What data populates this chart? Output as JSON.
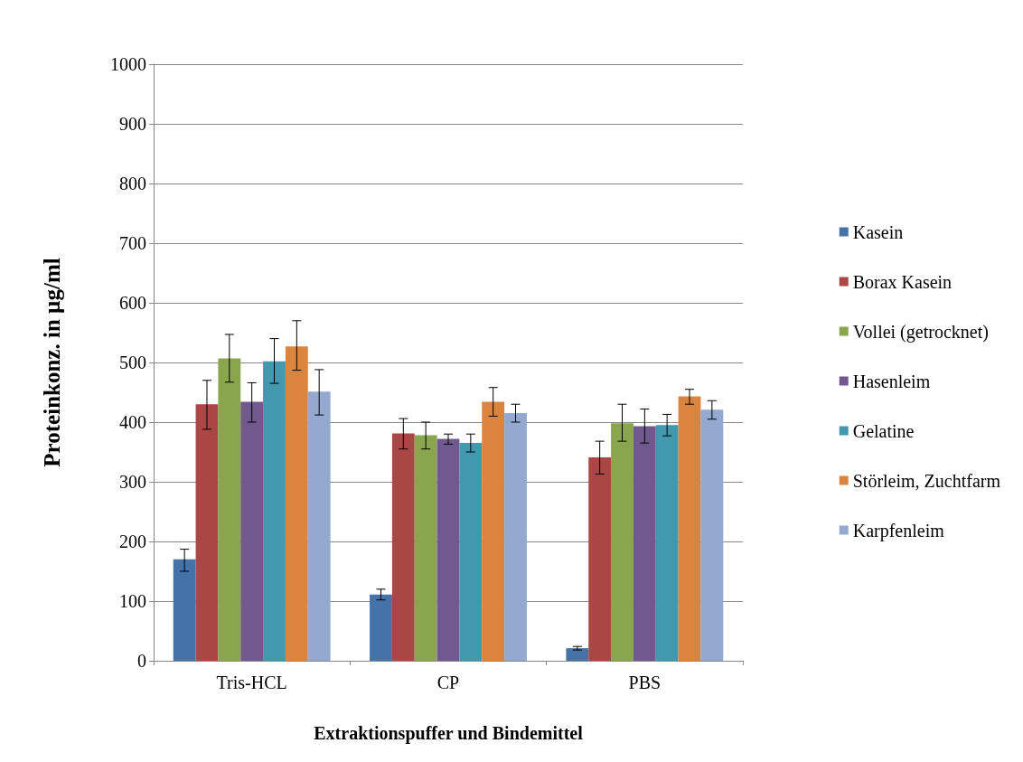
{
  "chart_data": {
    "type": "bar",
    "categories": [
      "Tris-HCL",
      "CP",
      "PBS"
    ],
    "xlabel": "Extraktionspuffer und Bindemittel",
    "ylabel": "Proteinkonz. in µg/ml",
    "ylim": [
      0,
      1000
    ],
    "yticks": [
      0,
      100,
      200,
      300,
      400,
      500,
      600,
      700,
      800,
      900,
      1000
    ],
    "grid": "y",
    "legend": "right",
    "series": [
      {
        "name": "Kasein",
        "color": "#4572a7",
        "values": [
          170,
          111,
          21
        ],
        "errors": [
          [
            150,
            187
          ],
          [
            102,
            120
          ],
          [
            18,
            24
          ]
        ]
      },
      {
        "name": "Borax Kasein",
        "color": "#aa4643",
        "values": [
          430,
          381,
          341
        ],
        "errors": [
          [
            388,
            470
          ],
          [
            355,
            406
          ],
          [
            313,
            368
          ]
        ]
      },
      {
        "name": "Vollei (getrocknet)",
        "color": "#89a54e",
        "values": [
          507,
          378,
          398
        ],
        "errors": [
          [
            467,
            547
          ],
          [
            355,
            400
          ],
          [
            368,
            430
          ]
        ]
      },
      {
        "name": "Hasenleim",
        "color": "#71588f",
        "values": [
          434,
          372,
          393
        ],
        "errors": [
          [
            400,
            466
          ],
          [
            363,
            380
          ],
          [
            365,
            422
          ]
        ]
      },
      {
        "name": "Gelatine",
        "color": "#4198af",
        "values": [
          502,
          365,
          395
        ],
        "errors": [
          [
            465,
            540
          ],
          [
            350,
            380
          ],
          [
            377,
            413
          ]
        ]
      },
      {
        "name": "Störleim, Zuchtfarm",
        "color": "#db843d",
        "values": [
          527,
          434,
          443
        ],
        "errors": [
          [
            487,
            570
          ],
          [
            410,
            458
          ],
          [
            430,
            455
          ]
        ]
      },
      {
        "name": "Karpfenleim",
        "color": "#93a9cf",
        "values": [
          451,
          415,
          421
        ],
        "errors": [
          [
            412,
            488
          ],
          [
            400,
            430
          ],
          [
            405,
            436
          ]
        ]
      }
    ]
  }
}
